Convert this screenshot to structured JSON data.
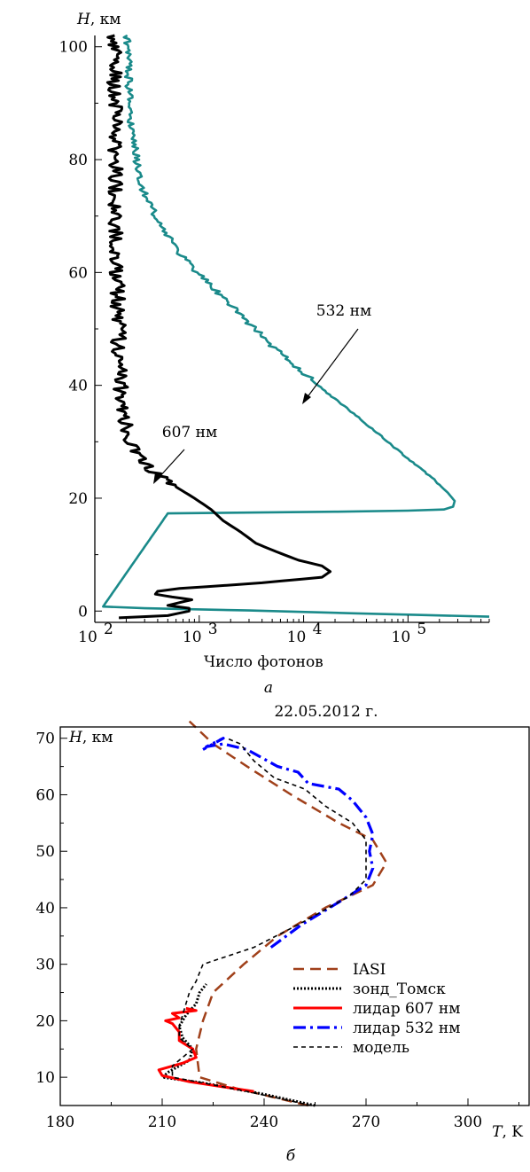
{
  "panel_a": {
    "h_axis_label": "H",
    "h_axis_unit": ", км",
    "x_axis_title": "Число фотонов",
    "x_tick_base": "10",
    "panel_letter": "а",
    "label_532": "532 нм",
    "label_607": "607 нм",
    "colors": {
      "c532": "#1a8a8a",
      "c607": "#000000"
    }
  },
  "panel_b": {
    "date_title": "22.05.2012 г.",
    "h_axis_label": "H",
    "h_axis_unit": ", км",
    "t_axis_label": "T",
    "t_axis_unit": ", K",
    "panel_letter": "б",
    "legend": [
      {
        "label": "IASI",
        "color": "#a0401a",
        "dash": "12,7",
        "width": 2.5
      },
      {
        "label": "зонд_Томск",
        "color": "#000000",
        "dash": "2,2",
        "width": 3
      },
      {
        "label": "лидар 607 нм",
        "color": "#ff0000",
        "dash": "",
        "width": 3
      },
      {
        "label": "лидар 532 нм",
        "color": "#0000ff",
        "dash": "14,5,3,5",
        "width": 3.2
      },
      {
        "label": "модель",
        "color": "#000000",
        "dash": "5,4",
        "width": 1.6
      }
    ]
  },
  "chart_data": [
    {
      "type": "line",
      "xscale": "log",
      "xlim": [
        100,
        600000
      ],
      "ylim": [
        -2,
        102
      ],
      "x_ticks": [
        100,
        1000,
        10000,
        100000
      ],
      "x_tick_labels": [
        "10^2",
        "10^3",
        "10^4",
        "10^5"
      ],
      "y_ticks": [
        0,
        20,
        40,
        60,
        80,
        100
      ],
      "xlabel": "Число фотонов",
      "ylabel": "H, км",
      "series": [
        {
          "name": "532 нм",
          "color": "#1a8a8a",
          "points": [
            [
              600000,
              -1.0
            ],
            [
              30000,
              -0.4
            ],
            [
              3000,
              0.1
            ],
            [
              300,
              0.5
            ],
            [
              120,
              0.8
            ],
            [
              500,
              17.3
            ],
            [
              20000,
              17.6
            ],
            [
              100000,
              17.8
            ],
            [
              220000,
              18.0
            ],
            [
              270000,
              18.5
            ],
            [
              280000,
              19.5
            ],
            [
              240000,
              21
            ],
            [
              160000,
              24
            ],
            [
              100000,
              27
            ],
            [
              55000,
              31
            ],
            [
              30000,
              35
            ],
            [
              16000,
              39
            ],
            [
              9000,
              43
            ],
            [
              5000,
              47
            ],
            [
              3000,
              51
            ],
            [
              1800,
              55
            ],
            [
              1100,
              59
            ],
            [
              750,
              62
            ],
            [
              520,
              66
            ],
            [
              380,
              70
            ],
            [
              300,
              74
            ],
            [
              260,
              78
            ],
            [
              240,
              82
            ],
            [
              225,
              86
            ],
            [
              215,
              90
            ],
            [
              210,
              95
            ],
            [
              205,
              100
            ],
            [
              205,
              102
            ]
          ]
        },
        {
          "name": "607 нм",
          "color": "#000000",
          "points": [
            [
              170,
              -1.2
            ],
            [
              500,
              -0.8
            ],
            [
              800,
              0
            ],
            [
              800,
              0.5
            ],
            [
              500,
              1.0
            ],
            [
              650,
              1.5
            ],
            [
              850,
              2.0
            ],
            [
              550,
              2.5
            ],
            [
              380,
              3.0
            ],
            [
              400,
              3.5
            ],
            [
              650,
              4.0
            ],
            [
              4000,
              5.0
            ],
            [
              15000,
              6.0
            ],
            [
              18000,
              7.0
            ],
            [
              15000,
              8.0
            ],
            [
              9000,
              9.0
            ],
            [
              5500,
              10.5
            ],
            [
              3500,
              12
            ],
            [
              2500,
              14
            ],
            [
              1700,
              16
            ],
            [
              1300,
              18
            ],
            [
              900,
              20
            ],
            [
              600,
              22
            ],
            [
              400,
              24
            ],
            [
              300,
              26
            ],
            [
              250,
              28
            ],
            [
              220,
              30
            ],
            [
              200,
              33
            ],
            [
              185,
              36
            ],
            [
              175,
              40
            ],
            [
              170,
              45
            ],
            [
              168,
              50
            ],
            [
              165,
              55
            ],
            [
              163,
              60
            ],
            [
              160,
              65
            ],
            [
              160,
              70
            ],
            [
              158,
              75
            ],
            [
              158,
              80
            ],
            [
              156,
              85
            ],
            [
              156,
              90
            ],
            [
              155,
              95
            ],
            [
              155,
              100
            ],
            [
              155,
              102
            ]
          ]
        }
      ]
    },
    {
      "type": "line",
      "title": "22.05.2012 г.",
      "xlim": [
        180,
        318
      ],
      "ylim": [
        5,
        72
      ],
      "x_ticks": [
        180,
        210,
        240,
        270,
        300
      ],
      "y_ticks": [
        10,
        20,
        30,
        40,
        50,
        60,
        70
      ],
      "xlabel": "T, K",
      "ylabel": "H, км",
      "legend_position": "right",
      "series": [
        {
          "name": "IASI",
          "color": "#a0401a",
          "points": [
            [
              253,
              5
            ],
            [
              232,
              8
            ],
            [
              221,
              10
            ],
            [
              220,
              15
            ],
            [
              222,
              20
            ],
            [
              225,
              25
            ],
            [
              234,
              30
            ],
            [
              244,
              35
            ],
            [
              258,
              40
            ],
            [
              272,
              44
            ],
            [
              276,
              48
            ],
            [
              272,
              52
            ],
            [
              262,
              55
            ],
            [
              248,
              60
            ],
            [
              235,
              65
            ],
            [
              225,
              69
            ],
            [
              218,
              73
            ]
          ]
        },
        {
          "name": "зонд_Томск",
          "color": "#000000",
          "points": [
            [
              255,
              5
            ],
            [
              240,
              7
            ],
            [
              222,
              9
            ],
            [
              210,
              10
            ],
            [
              212,
              11
            ],
            [
              218,
              13
            ],
            [
              219,
              15
            ],
            [
              216,
              17
            ],
            [
              215,
              19
            ],
            [
              217,
              21
            ],
            [
              220,
              23
            ],
            [
              221,
              25
            ],
            [
              223,
              26.5
            ]
          ]
        },
        {
          "name": "лидар 607 нм",
          "color": "#ff0000",
          "points": [
            [
              237,
              7.5
            ],
            [
              228,
              8.3
            ],
            [
              218,
              9.2
            ],
            [
              210,
              10.3
            ],
            [
              209,
              11.3
            ],
            [
              216,
              12.5
            ],
            [
              220,
              13.5
            ],
            [
              219,
              15
            ],
            [
              215,
              16.5
            ],
            [
              215,
              18
            ],
            [
              213,
              19.5
            ],
            [
              211,
              20
            ],
            [
              215,
              20.5
            ],
            [
              213,
              21.3
            ],
            [
              220,
              21.8
            ],
            [
              217,
              22.2
            ]
          ]
        },
        {
          "name": "лидар 532 нм",
          "color": "#0000ff",
          "points": [
            [
              242,
              33
            ],
            [
              251,
              37
            ],
            [
              262,
              41
            ],
            [
              270,
              44
            ],
            [
              272,
              47
            ],
            [
              271,
              50
            ],
            [
              272,
              53
            ],
            [
              270,
              56
            ],
            [
              266,
              59
            ],
            [
              262,
              61
            ],
            [
              253,
              62
            ],
            [
              250,
              64
            ],
            [
              244,
              65
            ],
            [
              238,
              67
            ],
            [
              235,
              68
            ],
            [
              228,
              69
            ],
            [
              223,
              68.5
            ],
            [
              228,
              70
            ],
            [
              222,
              68
            ]
          ]
        },
        {
          "name": "модель",
          "color": "#000000",
          "points": [
            [
              254,
              5
            ],
            [
              235,
              7.5
            ],
            [
              222,
              9
            ],
            [
              213,
              10
            ],
            [
              213,
              12
            ],
            [
              217,
              14
            ],
            [
              219,
              15
            ],
            [
              215,
              17
            ],
            [
              215,
              19
            ],
            [
              216,
              21
            ],
            [
              217,
              23
            ],
            [
              218,
              25
            ],
            [
              220,
              27
            ],
            [
              222,
              30
            ],
            [
              237,
              33
            ],
            [
              250,
              37
            ],
            [
              265,
              42
            ],
            [
              270,
              45
            ],
            [
              270,
              48
            ],
            [
              270,
              52
            ],
            [
              266,
              55
            ],
            [
              258,
              58
            ],
            [
              252,
              61
            ],
            [
              243,
              63
            ],
            [
              237,
              66
            ],
            [
              233,
              69
            ],
            [
              229,
              70
            ]
          ]
        }
      ]
    }
  ]
}
